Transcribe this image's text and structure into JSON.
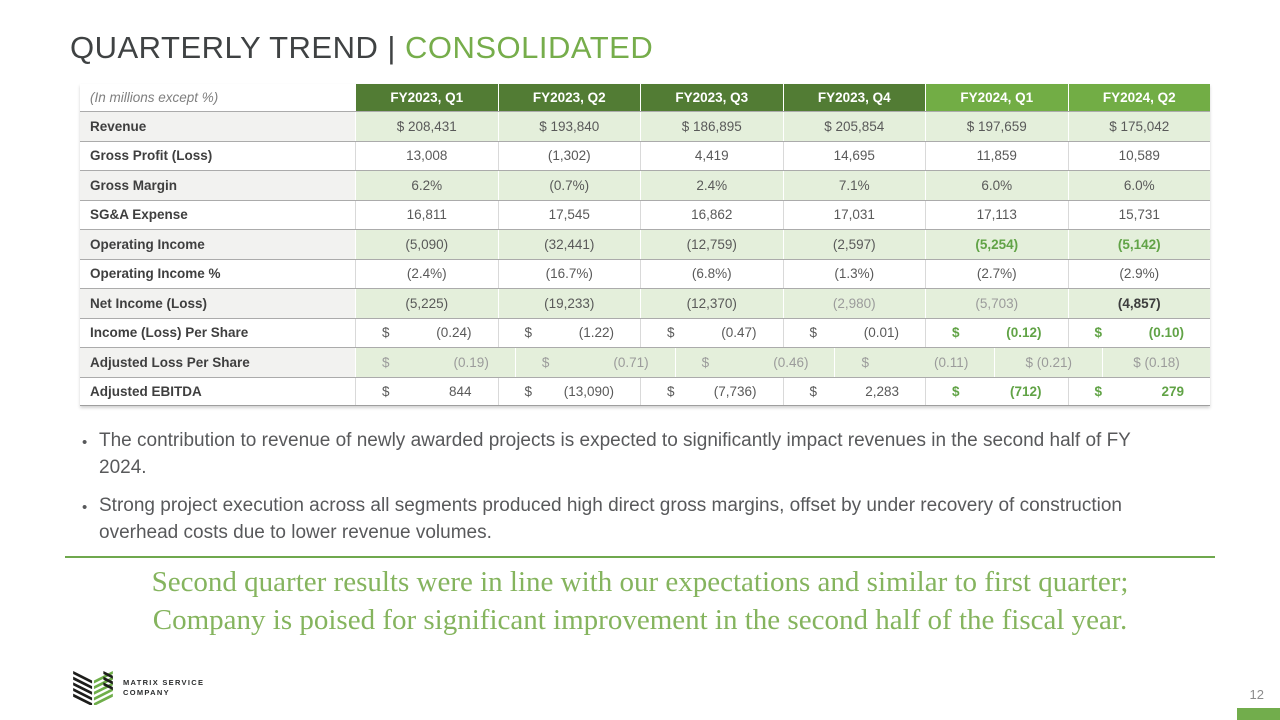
{
  "slide": {
    "title": {
      "main": "QUARTERLY TREND",
      "divider": "|",
      "accent": "CONSOLIDATED"
    },
    "page_number": "12"
  },
  "table": {
    "unit_note": "(In millions except %)",
    "columns": [
      {
        "label": "FY2023, Q1",
        "group": "fy2023"
      },
      {
        "label": "FY2023, Q2",
        "group": "fy2023"
      },
      {
        "label": "FY2023, Q3",
        "group": "fy2023"
      },
      {
        "label": "FY2023, Q4",
        "group": "fy2023"
      },
      {
        "label": "FY2024, Q1",
        "group": "fy2024"
      },
      {
        "label": "FY2024, Q2",
        "group": "fy2024"
      }
    ],
    "rows": [
      {
        "label": "Revenue",
        "shaded": true,
        "cells": [
          {
            "t": "$ 208,431"
          },
          {
            "t": "$ 193,840"
          },
          {
            "t": "$ 186,895"
          },
          {
            "t": "$ 205,854"
          },
          {
            "t": "$ 197,659"
          },
          {
            "t": "$ 175,042"
          }
        ]
      },
      {
        "label": "Gross Profit (Loss)",
        "shaded": false,
        "cells": [
          {
            "t": "13,008"
          },
          {
            "t": "(1,302)"
          },
          {
            "t": "4,419"
          },
          {
            "t": "14,695"
          },
          {
            "t": "11,859"
          },
          {
            "t": "10,589"
          }
        ]
      },
      {
        "label": "Gross Margin",
        "shaded": true,
        "cells": [
          {
            "t": "6.2%"
          },
          {
            "t": "(0.7%)"
          },
          {
            "t": "2.4%"
          },
          {
            "t": "7.1%"
          },
          {
            "t": "6.0%"
          },
          {
            "t": "6.0%"
          }
        ]
      },
      {
        "label": "SG&A Expense",
        "shaded": false,
        "cells": [
          {
            "t": "16,811"
          },
          {
            "t": "17,545"
          },
          {
            "t": "16,862"
          },
          {
            "t": "17,031"
          },
          {
            "t": "17,113"
          },
          {
            "t": "15,731"
          }
        ]
      },
      {
        "label": "Operating Income",
        "shaded": true,
        "cells": [
          {
            "t": "(5,090)"
          },
          {
            "t": "(32,441)"
          },
          {
            "t": "(12,759)"
          },
          {
            "t": "(2,597)"
          },
          {
            "t": "(5,254)",
            "s": "green"
          },
          {
            "t": "(5,142)",
            "s": "green"
          }
        ]
      },
      {
        "label": "Operating Income %",
        "shaded": false,
        "cells": [
          {
            "t": "(2.4%)"
          },
          {
            "t": "(16.7%)"
          },
          {
            "t": "(6.8%)"
          },
          {
            "t": "(1.3%)"
          },
          {
            "t": "(2.7%)"
          },
          {
            "t": "(2.9%)"
          }
        ]
      },
      {
        "label": "Net Income (Loss)",
        "shaded": true,
        "cells": [
          {
            "t": "(5,225)"
          },
          {
            "t": "(19,233)"
          },
          {
            "t": "(12,370)"
          },
          {
            "t": "(2,980)",
            "s": "muted"
          },
          {
            "t": "(5,703)",
            "s": "muted"
          },
          {
            "t": "(4,857)",
            "s": "strong"
          }
        ]
      },
      {
        "label": "Income (Loss) Per Share",
        "shaded": false,
        "cells": [
          {
            "d": "$",
            "v": "(0.24)"
          },
          {
            "d": "$",
            "v": "(1.22)"
          },
          {
            "d": "$",
            "v": "(0.47)"
          },
          {
            "d": "$",
            "v": "(0.01)"
          },
          {
            "d": "$",
            "v": "(0.12)",
            "s": "green"
          },
          {
            "d": "$",
            "v": "(0.10)",
            "s": "green"
          }
        ]
      },
      {
        "label": "Adjusted Loss Per Share",
        "shaded": true,
        "cells": [
          {
            "d": "$",
            "v": "(0.19)",
            "s": "muted"
          },
          {
            "d": "$",
            "v": "(0.71)",
            "s": "muted"
          },
          {
            "d": "$",
            "v": "(0.46)",
            "s": "muted"
          },
          {
            "d": "$",
            "v": "(0.11)",
            "s": "muted"
          },
          {
            "t": "$ (0.21)",
            "s": "muted"
          },
          {
            "t": "$ (0.18)",
            "s": "muted"
          }
        ]
      },
      {
        "label": "Adjusted EBITDA",
        "shaded": false,
        "cells": [
          {
            "d": "$",
            "v": "844"
          },
          {
            "d": "$",
            "v": "(13,090)"
          },
          {
            "d": "$",
            "v": "(7,736)"
          },
          {
            "d": "$",
            "v": "2,283"
          },
          {
            "d": "$",
            "v": "(712)",
            "s": "green"
          },
          {
            "d": "$",
            "v": "279",
            "s": "green"
          }
        ]
      }
    ]
  },
  "bullets": [
    "The contribution to revenue of newly awarded projects is expected to significantly impact revenues in the second half of FY 2024.",
    "Strong project execution across all segments produced high direct gross margins, offset by under recovery of construction overhead costs due to lower revenue volumes."
  ],
  "quote": {
    "lines": [
      "Second quarter results were in line with our expectations and similar to first quarter;",
      "Company is poised for significant improvement in the second half of the fiscal year."
    ]
  },
  "logo": {
    "line1": "MATRIX SERVICE",
    "line2": "COMPANY"
  },
  "colors": {
    "brand_green": "#72ad4a",
    "dark_header_green": "#527c34",
    "light_header_green": "#72ad45",
    "row_shade_green": "#e4efdb",
    "accent_value_green": "#61a346",
    "quote_green": "#85b45e",
    "title_gray": "#3f4243",
    "body_gray": "#58595b"
  }
}
